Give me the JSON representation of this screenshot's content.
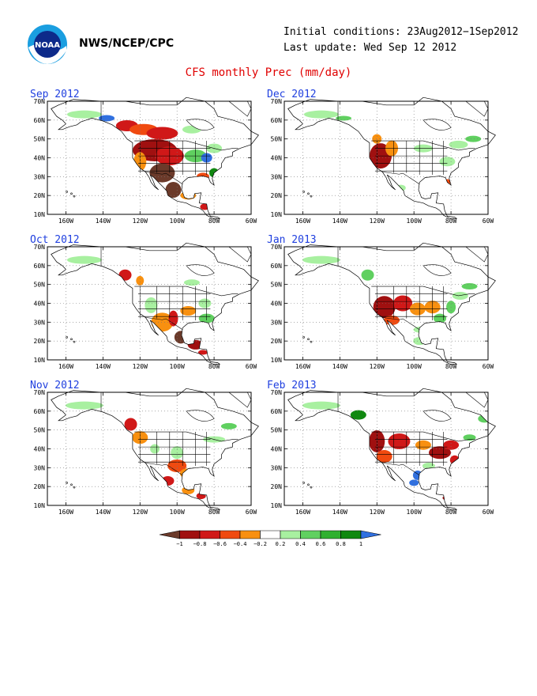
{
  "header": {
    "agency": "NWS/NCEP/CPC",
    "initial_conditions": "Initial conditions: 23Aug2012−1Sep2012",
    "last_update": "Last update: Wed Sep 12 2012",
    "logo_text": "NOAA"
  },
  "title": "CFS monthly Prec (mm/day)",
  "axes": {
    "lat_labels": [
      "70N",
      "60N",
      "50N",
      "40N",
      "30N",
      "20N",
      "10N"
    ],
    "lon_labels": [
      "160W",
      "140W",
      "120W",
      "100W",
      "80W",
      "60W"
    ]
  },
  "panels": [
    {
      "title": "Sep 2012"
    },
    {
      "title": "Dec 2012"
    },
    {
      "title": "Oct 2012"
    },
    {
      "title": "Jan 2013"
    },
    {
      "title": "Nov 2012"
    },
    {
      "title": "Feb 2013"
    }
  ],
  "colorbar": {
    "labels": [
      "−1",
      "−0.8",
      "−0.6",
      "−0.4",
      "−0.2",
      "0.2",
      "0.4",
      "0.6",
      "0.8",
      "1"
    ],
    "colors": [
      "#6b3a2a",
      "#a01010",
      "#d01818",
      "#f04a10",
      "#f89010",
      "#ffffff",
      "#a8f0a0",
      "#60d060",
      "#30b030",
      "#108810",
      "#3070e0"
    ]
  },
  "colors": {
    "brown": "#6b3a2a",
    "darkred": "#a01010",
    "red": "#d01818",
    "redorange": "#f04a10",
    "orange": "#f89010",
    "lightgreen": "#a8f0a0",
    "green": "#60d060",
    "midgreen": "#30b030",
    "darkgreen": "#108810",
    "blue": "#3070e0",
    "title_red": "#e00000",
    "panel_title_blue": "#1f3fdf"
  }
}
